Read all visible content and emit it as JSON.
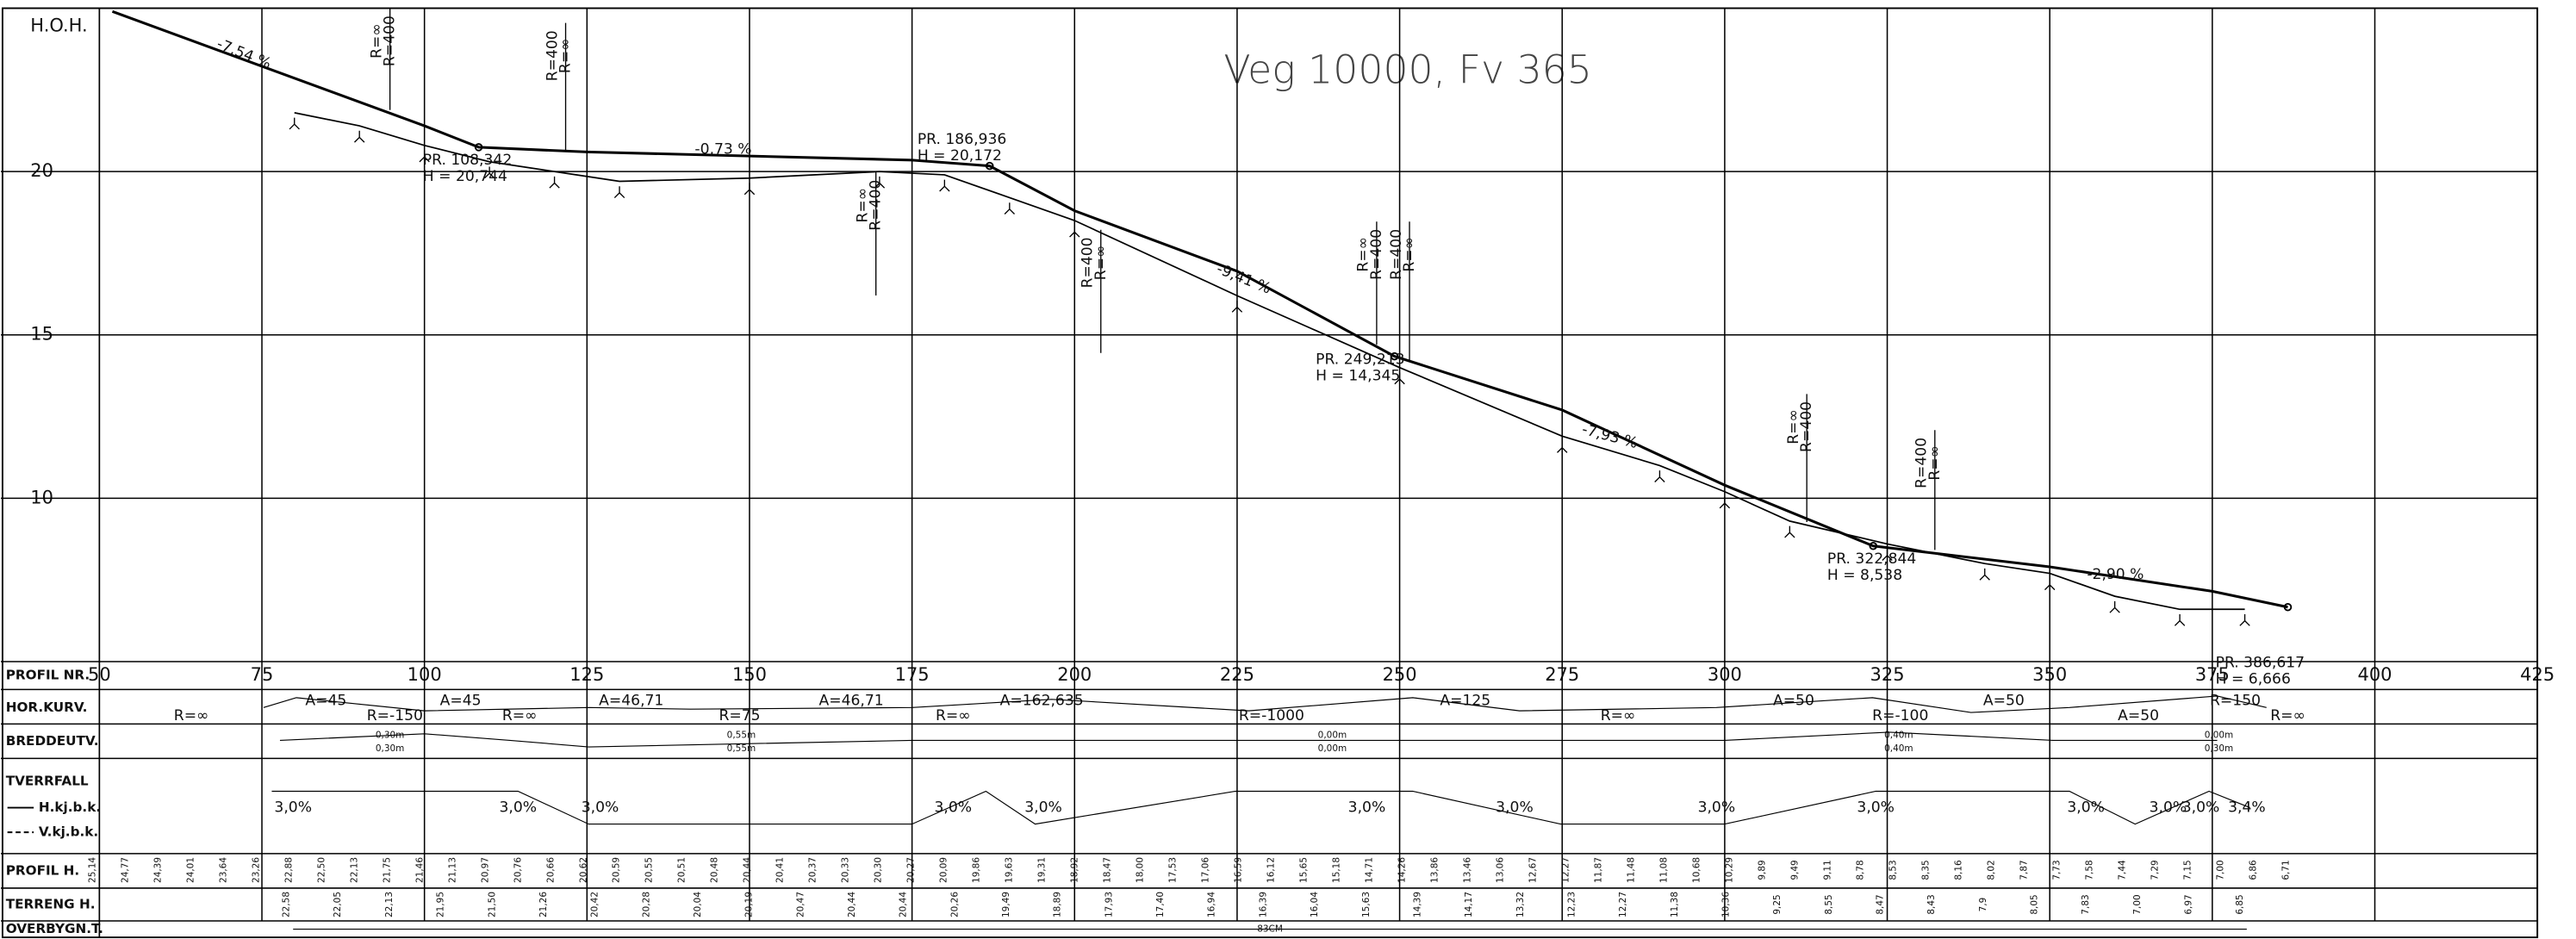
{
  "chart_data": {
    "type": "line",
    "title": "Veg 10000, Fv 365",
    "y_label": "H.O.H.",
    "xlim": [
      50,
      425
    ],
    "xticks": [
      50,
      75,
      100,
      125,
      150,
      175,
      200,
      225,
      250,
      275,
      300,
      325,
      350,
      375,
      400,
      425
    ],
    "ylim": [
      5,
      25
    ],
    "yticks": [
      10,
      15,
      20
    ],
    "grid": true,
    "series": [
      {
        "color": "#000000",
        "x": [
          52,
          100,
          108.342,
          125,
          175,
          186.936,
          200,
          225,
          249.213,
          275,
          300,
          322.844,
          350,
          375,
          386.617
        ],
        "values": [
          24.9,
          21.4,
          20.744,
          20.6,
          20.35,
          20.172,
          18.8,
          16.95,
          14.345,
          12.7,
          10.4,
          8.538,
          7.9,
          7.15,
          6.666
        ]
      },
      {
        "color": "#000000",
        "x": [
          80,
          90,
          100,
          110,
          120,
          130,
          150,
          170,
          180,
          190,
          200,
          225,
          250,
          275,
          290,
          300,
          310,
          325,
          340,
          350,
          360,
          370,
          380
        ],
        "values": [
          21.8,
          21.4,
          20.8,
          20.3,
          20.0,
          19.7,
          19.8,
          20.0,
          19.9,
          19.2,
          18.5,
          16.2,
          14.0,
          11.9,
          11.0,
          10.2,
          9.3,
          8.6,
          8.0,
          7.7,
          7.0,
          6.6,
          6.6
        ]
      }
    ],
    "slope_labels": [
      "-7,54 %",
      "-0,73 %",
      "-9,41 %",
      "-7,93 %",
      "-2,90 %"
    ],
    "stations": [
      {
        "label": "PR. 108,342",
        "height_label": "H = 20,744",
        "x": 108.342,
        "y": 20.744
      },
      {
        "label": "PR. 186,936",
        "height_label": "H = 20,172",
        "x": 186.936,
        "y": 20.172
      },
      {
        "label": "PR. 249,213",
        "height_label": "H = 14,345",
        "x": 249.213,
        "y": 14.345
      },
      {
        "label": "PR. 322,844",
        "height_label": "H = 8,538",
        "x": 322.844,
        "y": 8.538
      },
      {
        "label": "PR. 386,617",
        "height_label": "H = 6,666",
        "x": 386.617,
        "y": 6.666
      }
    ],
    "curve_marks": [
      "R=∞",
      "R=400",
      "R=400",
      "R=∞",
      "R=∞",
      "R=400",
      "R=400",
      "R=∞",
      "R=∞",
      "R=400",
      "R=400",
      "R=∞",
      "R=∞",
      "R=400",
      "R=400",
      "R=∞"
    ],
    "table": {
      "row_labels": [
        "PROFIL NR.",
        "HOR.KURV.",
        "BREDDEUTV.",
        "TVERRFALL",
        "PROFIL H.",
        "TERRENG H.",
        "OVERBYGN.T."
      ],
      "tverrfall_legend": [
        "H.kj.b.k.",
        "V.kj.b.k."
      ],
      "hor_kurv": [
        "R=∞",
        "A=45",
        "R=-150",
        "A=45",
        "R=∞",
        "A=46,71",
        "R=75",
        "A=46,71",
        "R=∞",
        "A=162,635",
        "R=-1000",
        "A=125",
        "R=∞",
        "A=50",
        "R=-100",
        "A=50",
        "A=50",
        "R=150",
        "R=∞"
      ],
      "breddeutv": [
        "0,30m",
        "0,30m",
        "0,55m",
        "0,55m",
        "0,00m",
        "0,00m",
        "0,40m",
        "0,40m",
        "0,00m",
        "0,30m"
      ],
      "tverrfall": [
        "3,0%",
        "3,0%",
        "3,0%",
        "3,0%",
        "3,0%",
        "3,0%",
        "3,0%",
        "3,0%",
        "3,0%",
        "3,0%",
        "3,0%",
        "3,0%",
        "3,4%"
      ],
      "profil_h": [
        "25,14",
        "24,77",
        "24,39",
        "24,01",
        "23,64",
        "23,26",
        "22,88",
        "22,50",
        "22,13",
        "21,75",
        "21,46",
        "21,13",
        "20,97",
        "20,76",
        "20,66",
        "20,62",
        "20,59",
        "20,55",
        "20,51",
        "20,48",
        "20,44",
        "20,41",
        "20,37",
        "20,33",
        "20,30",
        "20,27",
        "20,09",
        "19,86",
        "19,63",
        "19,31",
        "18,92",
        "18,47",
        "18,00",
        "17,53",
        "17,06",
        "16,59",
        "16,12",
        "15,65",
        "15,18",
        "14,71",
        "14,26",
        "13,86",
        "13,46",
        "13,06",
        "12,67",
        "12,27",
        "11,87",
        "11,48",
        "11,08",
        "10,68",
        "10,29",
        "9,89",
        "9,49",
        "9,11",
        "8,78",
        "8,53",
        "8,35",
        "8,16",
        "8,02",
        "7,87",
        "7,73",
        "7,58",
        "7,44",
        "7,29",
        "7,15",
        "7,00",
        "6,86",
        "6,71"
      ],
      "terreng_h": [
        "22,58",
        "22,05",
        "22,13",
        "21,95",
        "21,50",
        "21,26",
        "20,42",
        "20,28",
        "20,04",
        "20,19",
        "20,47",
        "20,44",
        "20,44",
        "20,26",
        "19,49",
        "18,89",
        "17,93",
        "17,40",
        "16,94",
        "16,39",
        "16,04",
        "15,63",
        "14,39",
        "14,17",
        "13,32",
        "12,23",
        "12,27",
        "11,38",
        "10,36",
        "9,25",
        "8,55",
        "8,47",
        "8,43",
        "7,9",
        "8,05",
        "7,83",
        "7,00",
        "6,97",
        "6,85"
      ],
      "overbygn": "83CM"
    }
  }
}
